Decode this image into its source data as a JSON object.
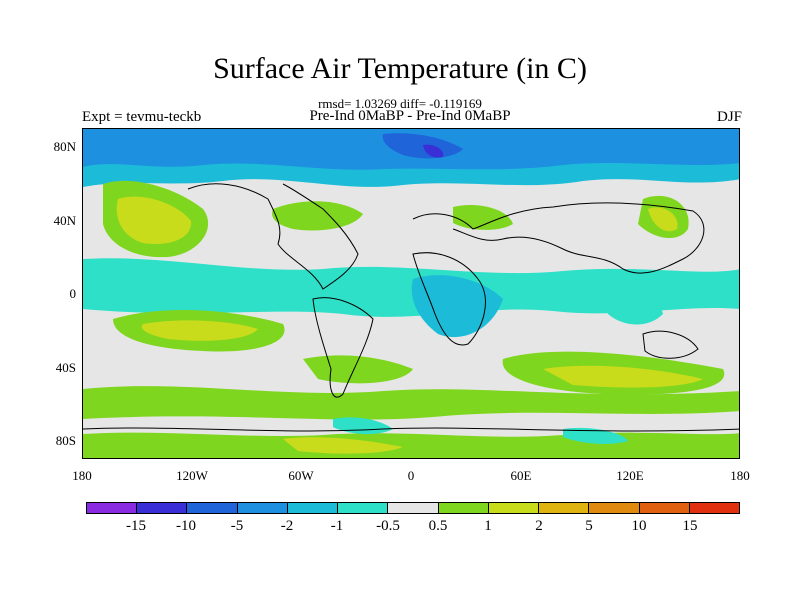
{
  "title": "Surface Air Temperature (in C)",
  "stats": "rmsd= 1.03269 diff= -0.119169",
  "experiment": "Expt = tevmu-teckb",
  "comparison": "Pre-Ind 0MaBP - Pre-Ind 0MaBP",
  "season": "DJF",
  "lat_labels": [
    "80N",
    "40N",
    "0",
    "40S",
    "80S"
  ],
  "lon_labels": [
    "180",
    "120W",
    "60W",
    "0",
    "60E",
    "120E",
    "180"
  ],
  "colorbar": {
    "colors": [
      "#8a2be2",
      "#3a2fd6",
      "#1f64d8",
      "#1e90e0",
      "#1cbcd8",
      "#2ee0c8",
      "#e6e6e6",
      "#7fd61e",
      "#c8dc1c",
      "#e0b410",
      "#e08a10",
      "#e06010",
      "#e03010"
    ],
    "labels": [
      "-15",
      "-10",
      "-5",
      "-2",
      "-1",
      "-0.5",
      "0.5",
      "1",
      "2",
      "5",
      "10",
      "15"
    ]
  }
}
